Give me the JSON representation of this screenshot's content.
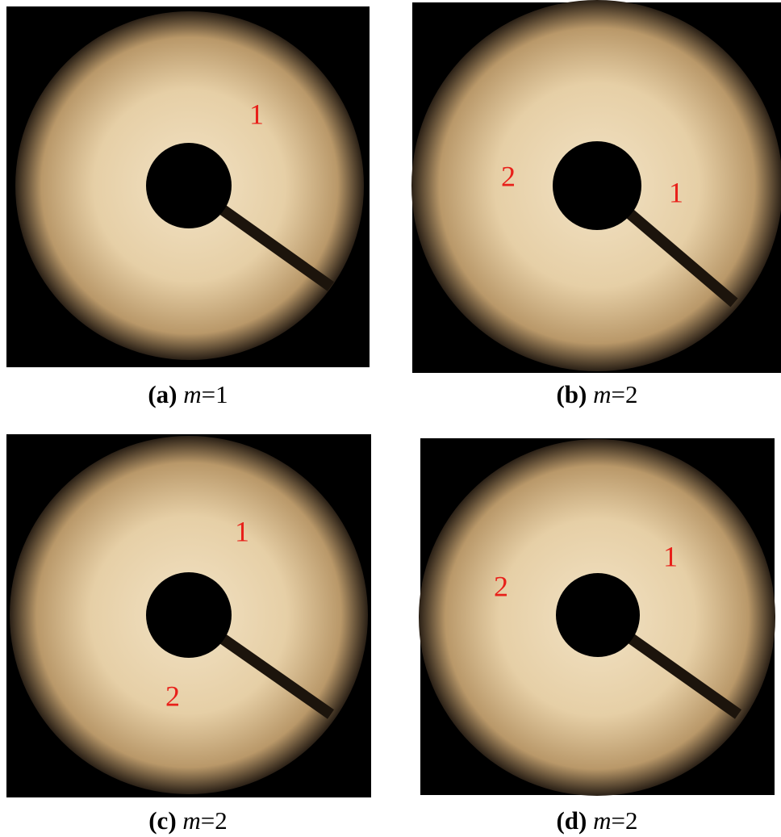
{
  "panels": [
    {
      "caption": {
        "label": "(a)",
        "variable": "m",
        "value": "=1"
      },
      "annotations": [
        "1"
      ]
    },
    {
      "caption": {
        "label": "(b)",
        "variable": "m",
        "value": "=2"
      },
      "annotations": [
        "2",
        "1"
      ]
    },
    {
      "caption": {
        "label": "(c)",
        "variable": "m",
        "value": "=2"
      },
      "annotations": [
        "1",
        "2"
      ]
    },
    {
      "caption": {
        "label": "(d)",
        "variable": "m",
        "value": "=2"
      },
      "annotations": [
        "2",
        "1"
      ]
    }
  ]
}
